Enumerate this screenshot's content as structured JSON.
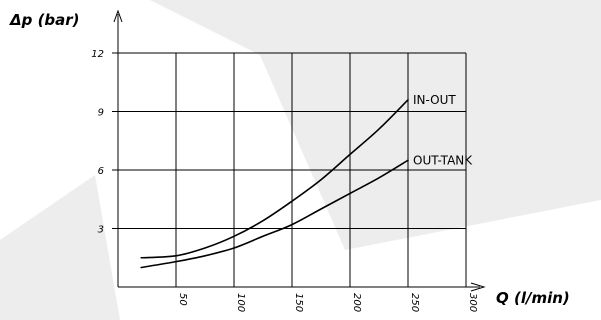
{
  "chart_data": {
    "type": "line",
    "xlabel": "Q (l/min)",
    "ylabel": "Δp (bar)",
    "xlim": [
      0,
      300
    ],
    "ylim": [
      0,
      12
    ],
    "x_ticks": [
      50,
      100,
      150,
      200,
      250,
      300
    ],
    "x_tick_labels": [
      "50",
      "100",
      "150",
      "200",
      "250",
      "300"
    ],
    "y_ticks": [
      3,
      6,
      9,
      12
    ],
    "y_tick_labels": [
      "3",
      "6",
      "9",
      "12"
    ],
    "grid": true,
    "series": [
      {
        "name": "IN-OUT",
        "x": [
          20,
          50,
          75,
          100,
          125,
          150,
          175,
          200,
          225,
          250
        ],
        "y": [
          1.5,
          1.6,
          2.0,
          2.6,
          3.4,
          4.4,
          5.5,
          6.8,
          8.1,
          9.6
        ]
      },
      {
        "name": "OUT-TANK",
        "x": [
          20,
          50,
          75,
          100,
          125,
          150,
          175,
          200,
          225,
          250
        ],
        "y": [
          1.0,
          1.3,
          1.6,
          2.0,
          2.6,
          3.2,
          4.0,
          4.8,
          5.6,
          6.5
        ]
      }
    ]
  }
}
